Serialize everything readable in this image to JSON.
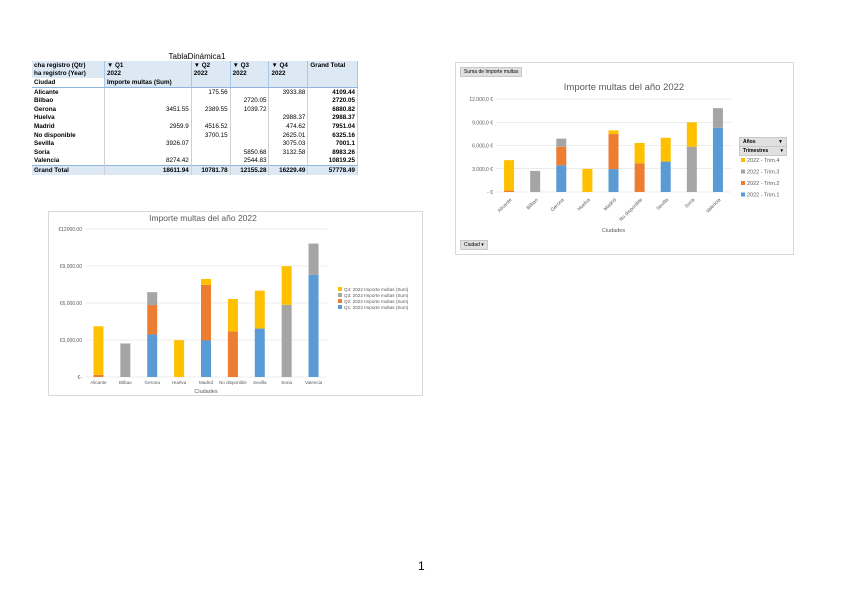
{
  "pivot": {
    "title": "TablaDinámica1",
    "header_row1": [
      "cha registro (Qtr)",
      "▼ Q1",
      "▼ Q2",
      "▼ Q3",
      "▼ Q4",
      "Grand Total"
    ],
    "header_row2": [
      "ha registro (Year)",
      "2022",
      "2022",
      "2022",
      "2022",
      ""
    ],
    "header_row3": [
      "Ciudad",
      "Importe multas (Sum)"
    ],
    "rows": [
      [
        "Alicante",
        "",
        "175.56",
        "",
        "3933.88",
        "4109.44"
      ],
      [
        "Bilbao",
        "",
        "",
        "2720.05",
        "",
        "2720.05"
      ],
      [
        "Gerona",
        "3451.55",
        "2389.55",
        "1039.72",
        "",
        "6880.82"
      ],
      [
        "Huelva",
        "",
        "",
        "",
        "2988.37",
        "2988.37"
      ],
      [
        "Madrid",
        "2959.9",
        "4516.52",
        "",
        "474.62",
        "7951.04"
      ],
      [
        "No disponible",
        "",
        "3700.15",
        "",
        "2625.01",
        "6325.16"
      ],
      [
        "Sevilla",
        "3926.07",
        "",
        "",
        "3075.03",
        "7001.1"
      ],
      [
        "Soria",
        "",
        "",
        "5850.68",
        "3132.58",
        "8983.26"
      ],
      [
        "Valencia",
        "8274.42",
        "",
        "2544.83",
        "",
        "10819.25"
      ]
    ],
    "grand_total": [
      "Grand Total",
      "18611.94",
      "10781.78",
      "12155.28",
      "16229.49",
      "57778.49"
    ]
  },
  "chart_data": [
    {
      "type": "bar",
      "stacked": true,
      "title": "Importe multas del año 2022",
      "xlabel": "Ciudades",
      "ylabel": "",
      "categories": [
        "Alicante",
        "Bilbao",
        "Gerona",
        "Huelva",
        "Madrid",
        "No disponible",
        "Sevilla",
        "Soria",
        "Valencia"
      ],
      "ylim": [
        0,
        12000
      ],
      "yticks": [
        "- €",
        "3.000,0 €",
        "6.000,0 €",
        "9.000,0 €",
        "12.000,0 €"
      ],
      "grid": true,
      "legend": "right",
      "legend_title": "Años",
      "legend_filter": "Trimestres",
      "field_button": "Suma de Importe multas",
      "axis_button": "Ciudad",
      "series": [
        {
          "name": "2022 - Trim.1",
          "color": "#5b9bd5",
          "values": [
            0,
            0,
            3451.55,
            0,
            2959.9,
            0,
            3926.07,
            0,
            8274.42
          ]
        },
        {
          "name": "2022 - Trim.2",
          "color": "#ed7d31",
          "values": [
            175.56,
            0,
            2389.55,
            0,
            4516.52,
            3700.15,
            0,
            0,
            0
          ]
        },
        {
          "name": "2022 - Trim.3",
          "color": "#a5a5a5",
          "values": [
            0,
            2720.05,
            1039.72,
            0,
            0,
            0,
            0,
            5850.68,
            2544.83
          ]
        },
        {
          "name": "2022 - Trim.4",
          "color": "#ffc000",
          "values": [
            3933.88,
            0,
            0,
            2988.37,
            474.62,
            2625.01,
            3075.03,
            3132.58,
            0
          ]
        }
      ]
    },
    {
      "type": "bar",
      "stacked": true,
      "title": "Importe multas del año 2022",
      "xlabel": "Ciudades",
      "ylabel": "",
      "categories": [
        "Alicante",
        "Bilbao",
        "Gerona",
        "Huelva",
        "Madrid",
        "No disponible",
        "Sevilla",
        "Soria",
        "Valencia"
      ],
      "ylim": [
        0,
        12000
      ],
      "yticks": [
        "€-",
        "€3,000.00",
        "€6,000.00",
        "€9,000.00",
        "€12000.00"
      ],
      "grid": true,
      "legend": "right",
      "series": [
        {
          "name": "Q1: 2022 Importe multas (Sum)",
          "color": "#5b9bd5",
          "values": [
            0,
            0,
            3451.55,
            0,
            2959.9,
            0,
            3926.07,
            0,
            8274.42
          ]
        },
        {
          "name": "Q2: 2022 Importe multas (Sum)",
          "color": "#ed7d31",
          "values": [
            175.56,
            0,
            2389.55,
            0,
            4516.52,
            3700.15,
            0,
            0,
            0
          ]
        },
        {
          "name": "Q3: 2022 Importe multas (Sum)",
          "color": "#a5a5a5",
          "values": [
            0,
            2720.05,
            1039.72,
            0,
            0,
            0,
            0,
            5850.68,
            2544.83
          ]
        },
        {
          "name": "Q4: 2022 Importe multas (Sum)",
          "color": "#ffc000",
          "values": [
            3933.88,
            0,
            0,
            2988.37,
            474.62,
            2625.01,
            3075.03,
            3132.58,
            0
          ]
        }
      ]
    }
  ],
  "page_number": "1"
}
